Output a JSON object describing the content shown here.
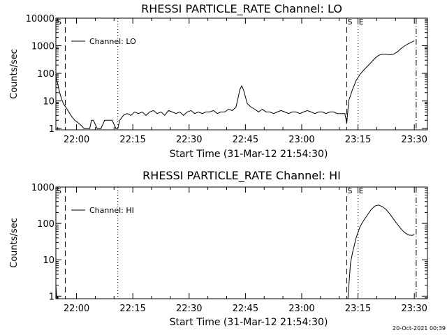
{
  "stamp": "20-Oct-2021 00:39",
  "chart_data": [
    {
      "type": "line",
      "title": "RHESSI PARTICLE_RATE Channel: LO",
      "xlabel": "Start Time (31-Mar-12 21:54:30)",
      "ylabel": "Counts/sec",
      "yscale": "log",
      "xlim": [
        0,
        99
      ],
      "ylim": [
        0.9,
        10000
      ],
      "xticks": [
        {
          "label": "22:00",
          "value": 5.5
        },
        {
          "label": "22:15",
          "value": 20.5
        },
        {
          "label": "22:30",
          "value": 35.5
        },
        {
          "label": "22:45",
          "value": 50.5
        },
        {
          "label": "23:00",
          "value": 65.5
        },
        {
          "label": "23:15",
          "value": 80.5
        },
        {
          "label": "23:30",
          "value": 95.5
        }
      ],
      "yticks": [
        {
          "label": "1",
          "value": 1
        },
        {
          "label": "10",
          "value": 10
        },
        {
          "label": "100",
          "value": 100
        },
        {
          "label": "1000",
          "value": 1000
        },
        {
          "label": "10000",
          "value": 10000
        }
      ],
      "legend": "Channel: LO",
      "legend_position": "top-left",
      "vlines": [
        {
          "x": 2.5,
          "style": "dashed"
        },
        {
          "x": 16.5,
          "style": "dotted"
        },
        {
          "x": 77.5,
          "style": "dashed"
        },
        {
          "x": 80.5,
          "style": "dotted"
        },
        {
          "x": 96,
          "style": "dashdot"
        }
      ],
      "markers": [
        {
          "label": "S",
          "x": 0
        },
        {
          "label": "S",
          "x": 77.5
        },
        {
          "label": "E",
          "x": 80.5
        }
      ],
      "series": [
        {
          "x": [
            0,
            0.5,
            1,
            1.5,
            2,
            3,
            4,
            5,
            6,
            7,
            7.5,
            8,
            9,
            9.5,
            10,
            11,
            11.5,
            12,
            13,
            14,
            15,
            16,
            16.5,
            17,
            18,
            19,
            20,
            21,
            22,
            23,
            24,
            25,
            26,
            27,
            28,
            29,
            30,
            31,
            32,
            33,
            34,
            35,
            36,
            37,
            38,
            39,
            40,
            41,
            42,
            43,
            44,
            45,
            46,
            47,
            48,
            48.5,
            49,
            49.5,
            50,
            50.5,
            51,
            52,
            53,
            54,
            55,
            56,
            57,
            58,
            59,
            60,
            61,
            62,
            63,
            64,
            65,
            66,
            67,
            68,
            69,
            70,
            71,
            72,
            73,
            74,
            75,
            76,
            77,
            77.5,
            78,
            79,
            80,
            81,
            82,
            83,
            84,
            85,
            86,
            87,
            88,
            89,
            90,
            91,
            92,
            93,
            94,
            95,
            95.5
          ],
          "y": [
            80,
            40,
            20,
            12,
            8,
            5,
            3,
            2,
            1.6,
            1.2,
            1,
            1,
            1,
            2,
            2,
            1,
            1,
            1,
            2,
            2,
            2,
            1,
            1,
            2,
            3,
            3.5,
            3,
            4,
            3.5,
            4,
            3,
            4,
            4.5,
            3.5,
            4,
            3,
            4.5,
            4,
            3.5,
            4,
            3,
            4,
            4.5,
            3.5,
            4,
            3.5,
            4,
            4,
            4.5,
            3.5,
            4,
            4,
            5,
            4.5,
            6,
            12,
            25,
            35,
            25,
            14,
            8,
            6,
            5,
            4,
            5,
            4,
            4,
            3.5,
            4,
            4.5,
            4,
            3.5,
            4,
            4,
            3.5,
            4,
            4.5,
            4,
            3.5,
            4,
            4,
            3.5,
            4,
            4,
            3.5,
            3.5,
            3.5,
            1.5,
            10,
            25,
            55,
            90,
            130,
            180,
            250,
            350,
            450,
            500,
            490,
            470,
            500,
            600,
            800,
            1000,
            1200,
            1400,
            1500
          ]
        }
      ]
    },
    {
      "type": "line",
      "title": "RHESSI PARTICLE_RATE Channel: HI",
      "xlabel": "Start Time (31-Mar-12 21:54:30)",
      "ylabel": "Counts/sec",
      "yscale": "log",
      "xlim": [
        0,
        99
      ],
      "ylim": [
        0.85,
        1000
      ],
      "xticks": [
        {
          "label": "22:00",
          "value": 5.5
        },
        {
          "label": "22:15",
          "value": 20.5
        },
        {
          "label": "22:30",
          "value": 35.5
        },
        {
          "label": "22:45",
          "value": 50.5
        },
        {
          "label": "23:00",
          "value": 65.5
        },
        {
          "label": "23:15",
          "value": 80.5
        },
        {
          "label": "23:30",
          "value": 95.5
        }
      ],
      "yticks": [
        {
          "label": "1",
          "value": 1
        },
        {
          "label": "10",
          "value": 10
        },
        {
          "label": "100",
          "value": 100
        },
        {
          "label": "1000",
          "value": 1000
        }
      ],
      "legend": "Channel: HI",
      "legend_position": "top-left",
      "vlines": [
        {
          "x": 2.5,
          "style": "dashed"
        },
        {
          "x": 16.5,
          "style": "dotted"
        },
        {
          "x": 77.5,
          "style": "dashed"
        },
        {
          "x": 80.5,
          "style": "dotted"
        },
        {
          "x": 96,
          "style": "dashdot"
        }
      ],
      "markers": [
        {
          "label": "S",
          "x": 0
        },
        {
          "label": "S",
          "x": 77.5
        },
        {
          "label": "E",
          "x": 80.5
        }
      ],
      "series": [
        {
          "x": [
            0,
            0.2,
            0.4,
            77.8,
            78.5,
            79,
            80,
            81,
            82,
            83,
            84,
            85,
            86,
            87,
            88,
            89,
            90,
            91,
            92,
            93,
            94,
            95,
            95.5
          ],
          "y": [
            2,
            1,
            0.85,
            0.85,
            8,
            15,
            40,
            80,
            120,
            170,
            240,
            300,
            320,
            290,
            240,
            180,
            130,
            95,
            70,
            55,
            48,
            47,
            50
          ]
        }
      ]
    }
  ]
}
